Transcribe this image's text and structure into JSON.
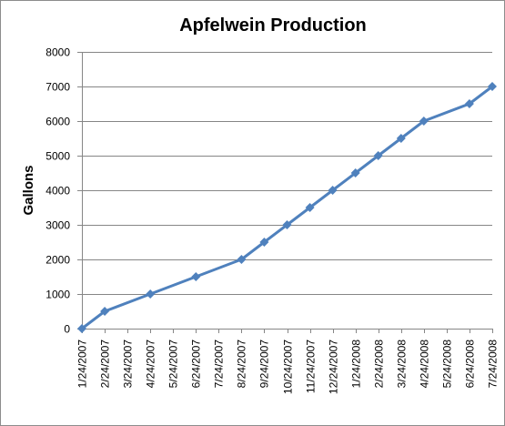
{
  "chart_data": {
    "type": "line",
    "title": "Apfelwein Production",
    "xlabel": "",
    "ylabel": "Gallons",
    "ylim": [
      0,
      8000
    ],
    "yticks": [
      0,
      1000,
      2000,
      3000,
      4000,
      5000,
      6000,
      7000,
      8000
    ],
    "grid": true,
    "legend": "none",
    "categories": [
      "1/24/2007",
      "2/24/2007",
      "3/24/2007",
      "4/24/2007",
      "5/24/2007",
      "6/24/2007",
      "7/24/2007",
      "8/24/2007",
      "9/24/2007",
      "10/24/2007",
      "11/24/2007",
      "12/24/2007",
      "1/24/2008",
      "2/24/2008",
      "3/24/2008",
      "4/24/2008",
      "5/24/2008",
      "6/24/2008",
      "7/24/2008"
    ],
    "series": [
      {
        "points": [
          {
            "x": "1/24/2007",
            "y": 0
          },
          {
            "x": "2/24/2007",
            "y": 500
          },
          {
            "x": "4/24/2007",
            "y": 1000
          },
          {
            "x": "6/24/2007",
            "y": 1500
          },
          {
            "x": "8/24/2007",
            "y": 2000
          },
          {
            "x": "9/24/2007",
            "y": 2500
          },
          {
            "x": "10/24/2007",
            "y": 3000
          },
          {
            "x": "11/24/2007",
            "y": 3500
          },
          {
            "x": "12/24/2007",
            "y": 4000
          },
          {
            "x": "1/24/2008",
            "y": 4500
          },
          {
            "x": "2/24/2008",
            "y": 5000
          },
          {
            "x": "3/24/2008",
            "y": 5500
          },
          {
            "x": "4/24/2008",
            "y": 6000
          },
          {
            "x": "6/24/2008",
            "y": 6500
          },
          {
            "x": "7/24/2008",
            "y": 7000
          }
        ]
      }
    ],
    "colors": {
      "series": "#4f81bd",
      "grid": "#868686"
    }
  }
}
